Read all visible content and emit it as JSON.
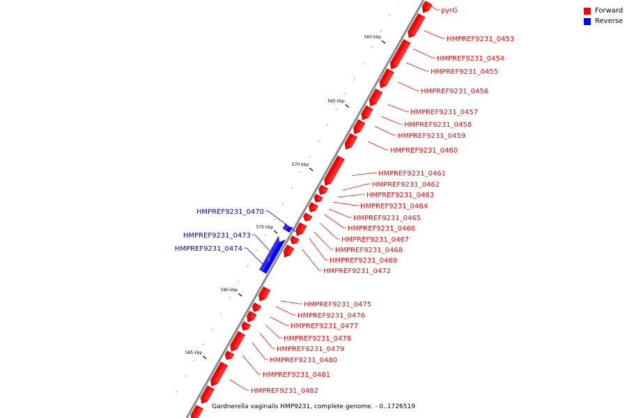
{
  "colors": {
    "forward": "#ff0000",
    "forward_dark": "#b00000",
    "reverse": "#0000ff",
    "reverse_dark": "#00009a",
    "backbone": "#8a8a8a"
  },
  "legend": {
    "forward_label": "Forward",
    "reverse_label": "Reverse"
  },
  "genome_title": "Gardnerella vaginalis HMP9231, complete genome. - 0..1726519",
  "scale_labels": [
    "560 kbp",
    "565 kbp",
    "570 kbp",
    "575 kbp",
    "580 kbp",
    "585 kbp"
  ],
  "genes_forward": [
    "pyrG",
    "HMPREF9231_0453",
    "HMPREF9231_0454",
    "HMPREF9231_0455",
    "HMPREF9231_0456",
    "HMPREF9231_0457",
    "HMPREF9231_0458",
    "HMPREF9231_0459",
    "HMPREF9231_0460",
    "HMPREF9231_0461",
    "HMPREF9231_0462",
    "HMPREF9231_0463",
    "HMPREF9231_0464",
    "HMPREF9231_0465",
    "HMPREF9231_0466",
    "HMPREF9231_0467",
    "HMPREF9231_0468",
    "HMPREF9231_0469",
    "HMPREF9231_0472",
    "HMPREF9231_0475",
    "HMPREF9231_0476",
    "HMPREF9231_0477",
    "HMPREF9231_0478",
    "HMPREF9231_0479",
    "HMPREF9231_0480",
    "HMPREF9231_0481",
    "HMPREF9231_0482"
  ],
  "genes_reverse": [
    "HMPREF9231_0470",
    "HMPREF9231_0473",
    "HMPREF9231_0474"
  ]
}
